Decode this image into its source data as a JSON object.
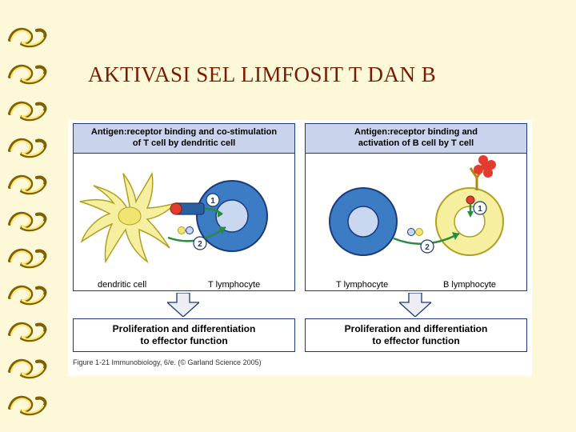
{
  "title": "AKTIVASI SEL LIMFOSIT T DAN B",
  "title_color": "#7a1a00",
  "background_color": "#fdf8d8",
  "bullets": {
    "count": 11,
    "stroke_color": "#806000",
    "fill_light": "#fce87a",
    "fill_dark": "#c9a227"
  },
  "panels": {
    "left": {
      "header_line1": "Antigen:receptor binding and co-stimulation",
      "header_line2": "of T cell by dendritic cell",
      "cell_left_label": "dendritic cell",
      "cell_right_label": "T lymphocyte",
      "bottom_line1": "Proliferation and differentiation",
      "bottom_line2": "to effector function"
    },
    "right": {
      "header_line1": "Antigen:receptor binding and",
      "header_line2": "activation of B cell by T cell",
      "cell_left_label": "T lymphocyte",
      "cell_right_label": "B  lymphocyte",
      "bottom_line1": "Proliferation and differentiation",
      "bottom_line2": "to effector function"
    },
    "header_bg": "#c9d3eb",
    "border_color": "#1a3a7a"
  },
  "colors": {
    "dendritic_fill": "#f6ef9f",
    "dendritic_stroke": "#b0a020",
    "tcell_fill": "#3b7cc4",
    "tcell_stroke": "#1a3a7a",
    "tcell_inner": "#c9d8f0",
    "bcell_fill": "#f6ef9f",
    "bcell_stroke": "#b0a020",
    "bcell_inner": "#ffffff",
    "antigen_red": "#e33b2e",
    "receptor_y": "#e8c840",
    "arrow_color": "#2b8a3e",
    "marker_fill": "#ffffff",
    "marker_stroke": "#1a3a7a",
    "marker_text": "#1a3a7a",
    "down_arrow_fill": "#eceef3",
    "down_arrow_stroke": "#1a3a7a"
  },
  "markers": {
    "one": "1",
    "two": "2"
  },
  "credit": "Figure 1-21 Immunobiology, 6/e. (© Garland Science 2005)"
}
